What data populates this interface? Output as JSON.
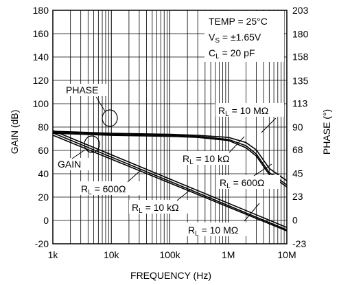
{
  "chart_data": {
    "type": "line",
    "title": "",
    "xlabel": "FREQUENCY (Hz)",
    "ylabel": "GAIN (dB)",
    "y2label": "PHASE (°)",
    "x_scale": "log",
    "xlim": [
      1000,
      10000000
    ],
    "ylim": [
      -20,
      180
    ],
    "y2lim": [
      -23,
      203
    ],
    "grid": true,
    "x_ticks": [
      {
        "v": 1000,
        "label": "1k"
      },
      {
        "v": 10000,
        "label": "10k"
      },
      {
        "v": 100000,
        "label": "100k"
      },
      {
        "v": 1000000,
        "label": "1M"
      },
      {
        "v": 10000000,
        "label": "10M"
      }
    ],
    "y_ticks": [
      {
        "v": -20,
        "label": "-20"
      },
      {
        "v": 0,
        "label": "0"
      },
      {
        "v": 20,
        "label": "20"
      },
      {
        "v": 40,
        "label": "40"
      },
      {
        "v": 60,
        "label": "60"
      },
      {
        "v": 80,
        "label": "80"
      },
      {
        "v": 100,
        "label": "100"
      },
      {
        "v": 120,
        "label": "120"
      },
      {
        "v": 140,
        "label": "140"
      },
      {
        "v": 160,
        "label": "160"
      },
      {
        "v": 180,
        "label": "180"
      }
    ],
    "y2_ticks": [
      {
        "v": -23,
        "label": "-23"
      },
      {
        "v": 0,
        "label": "0"
      },
      {
        "v": 23,
        "label": "23"
      },
      {
        "v": 45,
        "label": "45"
      },
      {
        "v": 68,
        "label": "68"
      },
      {
        "v": 90,
        "label": "90"
      },
      {
        "v": 113,
        "label": "113"
      },
      {
        "v": 135,
        "label": "135"
      },
      {
        "v": 158,
        "label": "158"
      },
      {
        "v": 180,
        "label": "180"
      },
      {
        "v": 203,
        "label": "203"
      }
    ],
    "conditions": [
      {
        "text": "TEMP = 25",
        "unit": "°C"
      },
      {
        "text": "V",
        "sub": "S",
        "rest": " = ±1.65V"
      },
      {
        "text": "C",
        "sub": "L",
        "rest": " = 20 pF"
      }
    ],
    "curve_labels": {
      "phase": "PHASE",
      "gain": "GAIN",
      "phase_10M": {
        "pre": "R",
        "sub": "L",
        "post": " = 10 MΩ"
      },
      "phase_10k": {
        "pre": "R",
        "sub": "L",
        "post": " = 10 kΩ"
      },
      "phase_600": {
        "pre": "R",
        "sub": "L",
        "post": " = 600Ω"
      },
      "gain_600": {
        "pre": "R",
        "sub": "L",
        "post": " = 600Ω"
      },
      "gain_10k": {
        "pre": "R",
        "sub": "L",
        "post": " = 10 kΩ"
      },
      "gain_10M": {
        "pre": "R",
        "sub": "L",
        "post": " = 10 MΩ"
      }
    },
    "series": [
      {
        "axis": "y2",
        "x": [
          1000,
          10000,
          100000,
          300000,
          1000000,
          2000000,
          3000000,
          5000000,
          10000000
        ],
        "values": [
          86,
          84,
          83,
          82,
          80,
          75,
          68,
          50,
          38
        ]
      },
      {
        "axis": "y2",
        "x": [
          1000,
          10000,
          100000,
          300000,
          1000000,
          2000000,
          3000000,
          5000000,
          10000000
        ],
        "values": [
          85,
          83,
          82,
          81,
          78,
          72,
          64,
          46,
          34
        ]
      },
      {
        "axis": "y2",
        "x": [
          1000,
          10000,
          100000,
          300000,
          1000000,
          2000000,
          3000000,
          5000000,
          10000000
        ],
        "values": [
          84,
          82,
          81,
          80,
          77,
          70,
          62,
          44,
          32
        ]
      },
      {
        "axis": "y",
        "x": [
          1000,
          10000000
        ],
        "values": [
          77,
          -6
        ]
      },
      {
        "axis": "y",
        "x": [
          1000,
          10000000
        ],
        "values": [
          75,
          -8
        ]
      },
      {
        "axis": "y",
        "x": [
          1000,
          10000000
        ],
        "values": [
          73,
          -9
        ]
      }
    ]
  }
}
